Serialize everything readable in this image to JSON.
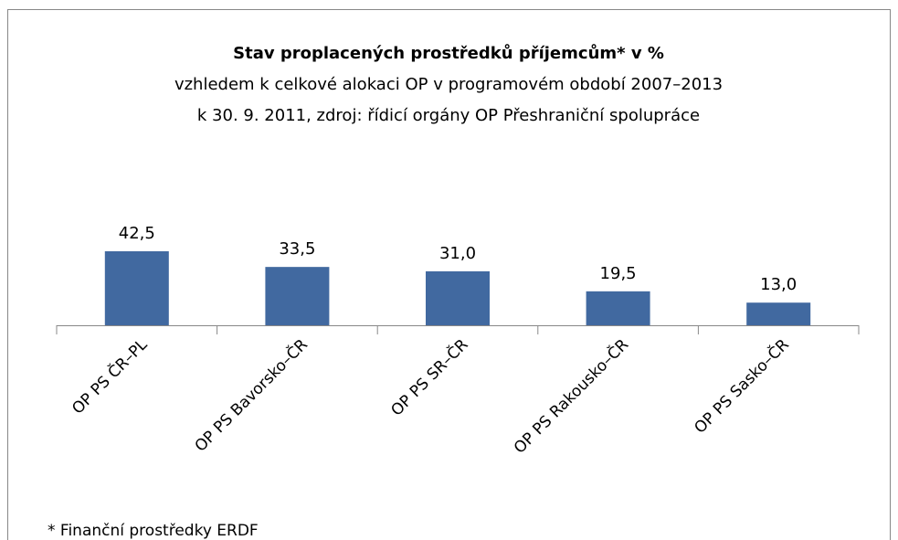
{
  "chart_data": {
    "type": "bar",
    "title": "Stav proplacených prostředků příjemcům* v %",
    "subtitle": [
      "vzhledem k celkové alokaci OP v programovém období 2007–2013",
      "k 30. 9. 2011, zdroj: řídicí orgány OP Přeshraniční spolupráce"
    ],
    "categories": [
      "OP PS ČR–PL",
      "OP PS Bavorsko–ČR",
      "OP PS SR–ČR",
      "OP PS Rakousko–ČR",
      "OP PS Sasko–ČR"
    ],
    "values": [
      42.5,
      33.5,
      31.0,
      19.5,
      13.0
    ],
    "value_labels": [
      "42,5",
      "33,5",
      "31,0",
      "19,5",
      "13,0"
    ],
    "color": "#4169a0",
    "footnote": "* Finanční prostředky ERDF"
  }
}
